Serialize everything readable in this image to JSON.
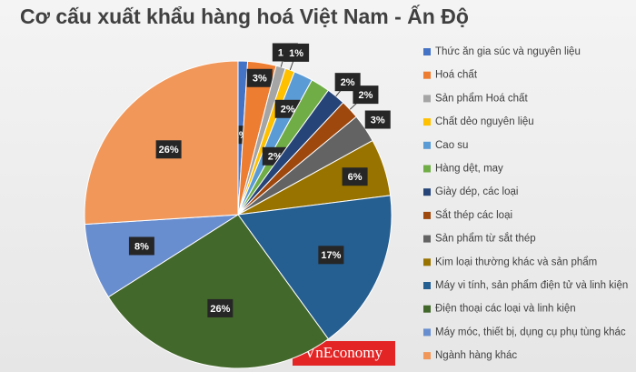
{
  "chart_data": {
    "type": "pie",
    "title": "Cơ cấu xuất khẩu hàng hoá Việt Nam - Ấn Độ",
    "categories": [
      "Thức ăn gia súc và nguyên liệu",
      "Hoá chất",
      "Sản phẩm Hoá chất",
      "Chất dẻo nguyên liệu",
      "Cao su",
      "Hàng dệt, may",
      "Giày dép, các loại",
      "Sắt thép các loại",
      "Sản phẩm từ sắt thép",
      "Kim loại thường khác và  sản phẩm",
      "Máy vi tính, sản phẩm điện tử và linh kiện",
      "Điện thoại các loại và linh kiện",
      "Máy móc, thiết bị, dụng cụ phụ tùng khác",
      "Ngành hàng khác"
    ],
    "values": [
      1,
      3,
      1,
      1,
      2,
      2,
      2,
      2,
      3,
      6,
      17,
      26,
      8,
      26
    ],
    "value_labels": [
      "1%",
      "3%",
      "1%",
      "1%",
      "2%",
      "2%",
      "2%",
      "2%",
      "3%",
      "6%",
      "17%",
      "26%",
      "8%",
      "26%"
    ],
    "colors": [
      "#4472c4",
      "#ed7d31",
      "#a5a5a5",
      "#ffc000",
      "#5b9bd5",
      "#70ad47",
      "#264478",
      "#9e480e",
      "#636363",
      "#997300",
      "#255e91",
      "#43682b",
      "#698ed0",
      "#f1975a"
    ],
    "watermark": "VnEconomy"
  }
}
